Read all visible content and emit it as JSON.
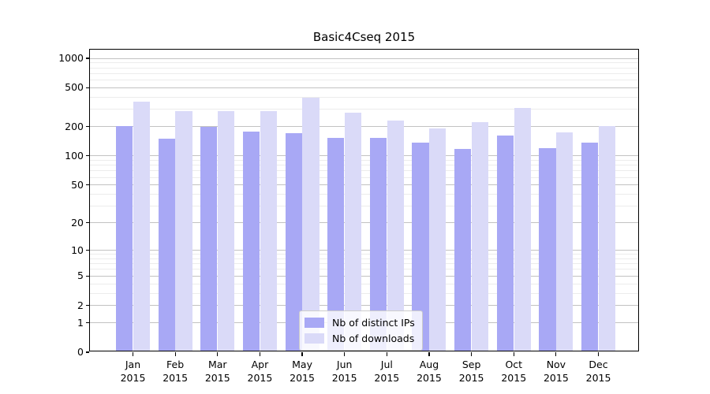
{
  "title": "Basic4Cseq 2015",
  "colors": {
    "ips_bar": "#a8a8f5",
    "downloads_bar": "#dadaf8",
    "major_grid": "#c2c2c2",
    "minor_grid": "#ececec",
    "axis": "#000000",
    "legend_border": "#cccccc"
  },
  "y_axis": {
    "tick_labels": [
      "0",
      "1",
      "2",
      "5",
      "10",
      "20",
      "50",
      "100",
      "200",
      "500",
      "1000"
    ],
    "tick_values": [
      0,
      1,
      2,
      5,
      10,
      20,
      50,
      100,
      200,
      500,
      1000
    ],
    "minor_tick_values": [
      3,
      4,
      6,
      7,
      8,
      9,
      30,
      40,
      60,
      70,
      80,
      90,
      300,
      400,
      600,
      700,
      800,
      900
    ]
  },
  "x_axis": {
    "months": [
      "Jan",
      "Feb",
      "Mar",
      "Apr",
      "May",
      "Jun",
      "Jul",
      "Aug",
      "Sep",
      "Oct",
      "Nov",
      "Dec"
    ],
    "year": "2015"
  },
  "legend": {
    "items": [
      {
        "label": "Nb of distinct IPs",
        "series": "ips"
      },
      {
        "label": "Nb of downloads",
        "series": "downloads"
      }
    ]
  },
  "chart_data": {
    "type": "bar",
    "title": "Basic4Cseq 2015",
    "categories": [
      "Jan 2015",
      "Feb 2015",
      "Mar 2015",
      "Apr 2015",
      "May 2015",
      "Jun 2015",
      "Jul 2015",
      "Aug 2015",
      "Sep 2015",
      "Oct 2015",
      "Nov 2015",
      "Dec 2015"
    ],
    "series": [
      {
        "name": "Nb of distinct IPs",
        "color": "#a8a8f5",
        "values": [
          197,
          146,
          193,
          171,
          164,
          147,
          148,
          131,
          114,
          156,
          115,
          131
        ]
      },
      {
        "name": "Nb of downloads",
        "color": "#dadaf8",
        "values": [
          348,
          280,
          277,
          278,
          380,
          270,
          224,
          186,
          216,
          300,
          168,
          196
        ]
      }
    ],
    "xlabel": "",
    "ylabel": "",
    "yscale": "log1p",
    "ylim": [
      0,
      1225
    ],
    "yticks": [
      0,
      1,
      2,
      5,
      10,
      20,
      50,
      100,
      200,
      500,
      1000
    ],
    "grid": "on",
    "legend_position": "lower center"
  }
}
